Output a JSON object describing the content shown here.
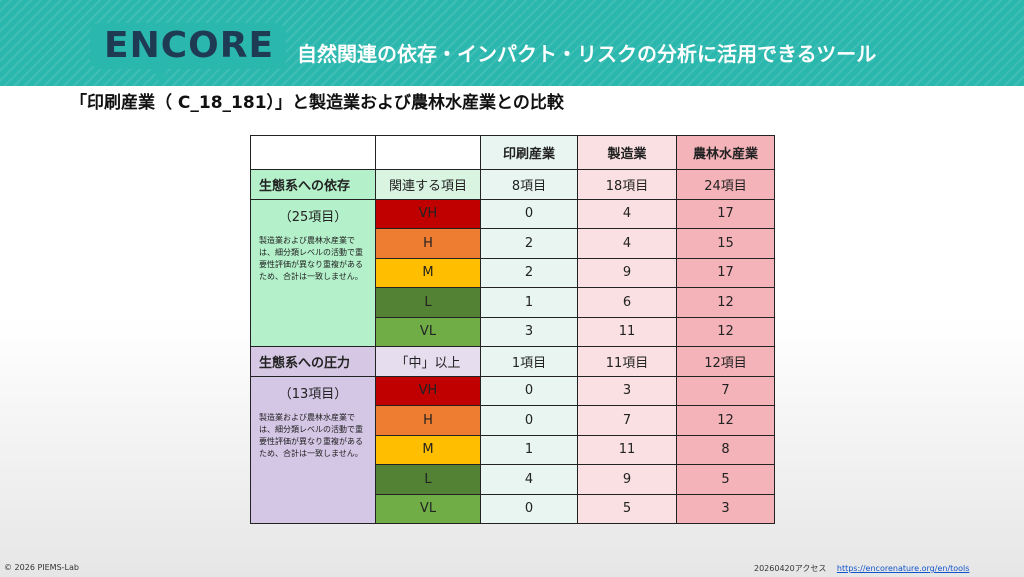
{
  "header": {
    "logo": "ENCORE",
    "subtitle": "自然関連の依存・インパクト・リスクの分析に活用できるツール",
    "color": "#2ab7ad"
  },
  "heading": "「印刷産業（ C_18_181）」と製造業および農林水産業との比較",
  "table": {
    "columns": [
      "印刷産業",
      "製造業",
      "農林水産業"
    ],
    "dependency": {
      "label": "生態系への依存",
      "sub_label": "関連する項目",
      "totals": [
        "8項目",
        "18項目",
        "24項目"
      ],
      "count": "（25項目）",
      "note": "製造業および農林水産業では、細分類レベルの活動で重要性評価が異なり重複があるため、合計は一致しません。",
      "rows": [
        {
          "rating": "VH",
          "values": [
            "0",
            "4",
            "17"
          ]
        },
        {
          "rating": "H",
          "values": [
            "2",
            "4",
            "15"
          ]
        },
        {
          "rating": "M",
          "values": [
            "2",
            "9",
            "17"
          ]
        },
        {
          "rating": "L",
          "values": [
            "1",
            "6",
            "12"
          ]
        },
        {
          "rating": "VL",
          "values": [
            "3",
            "11",
            "12"
          ]
        }
      ]
    },
    "pressure": {
      "label": "生態系への圧力",
      "sub_label": "「中」以上",
      "totals": [
        "1項目",
        "11項目",
        "12項目"
      ],
      "count": "（13項目）",
      "note": "製造業および農林水産業では、細分類レベルの活動で重要性評価が異なり重複があるため、合計は一致しません。",
      "rows": [
        {
          "rating": "VH",
          "values": [
            "0",
            "3",
            "7"
          ]
        },
        {
          "rating": "H",
          "values": [
            "0",
            "7",
            "12"
          ]
        },
        {
          "rating": "M",
          "values": [
            "1",
            "11",
            "8"
          ]
        },
        {
          "rating": "L",
          "values": [
            "4",
            "9",
            "5"
          ]
        },
        {
          "rating": "VL",
          "values": [
            "0",
            "5",
            "3"
          ]
        }
      ]
    },
    "rating_colors": {
      "VH": "#c00000",
      "H": "#ee7d31",
      "M": "#ffbf00",
      "L": "#548235",
      "VL": "#70ad47"
    }
  },
  "footer": {
    "copyright": "© 2026 PIEMS-Lab",
    "access": "20260420アクセス",
    "link": "https://encorenature.org/en/tools"
  }
}
